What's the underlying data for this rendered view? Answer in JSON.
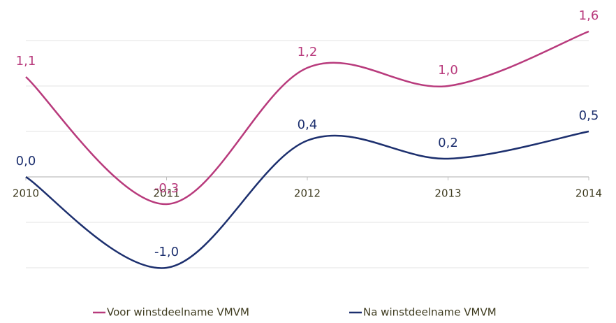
{
  "chart_data": {
    "type": "line",
    "categories": [
      "2010",
      "2011",
      "2012",
      "2013",
      "2014"
    ],
    "series": [
      {
        "name": "Voor winstdeelname VMVM",
        "color": "#b83a7c",
        "values": [
          1.1,
          -0.3,
          1.2,
          1.0,
          1.6
        ],
        "value_labels": [
          "1,1",
          "-0,3",
          "1,2",
          "1,0",
          "1,6"
        ]
      },
      {
        "name": "Na winstdeelname VMVM",
        "color": "#1c2f6e",
        "values": [
          0.0,
          -1.0,
          0.4,
          0.2,
          0.5
        ],
        "value_labels": [
          "0,0",
          "-1,0",
          "0,4",
          "0,2",
          "0,5"
        ]
      }
    ],
    "ylim": [
      -1.2,
      1.7
    ],
    "yticks": [
      -1.0,
      -0.5,
      0,
      0.5,
      1.0,
      1.5
    ],
    "grid": true,
    "legend": "bottom"
  }
}
